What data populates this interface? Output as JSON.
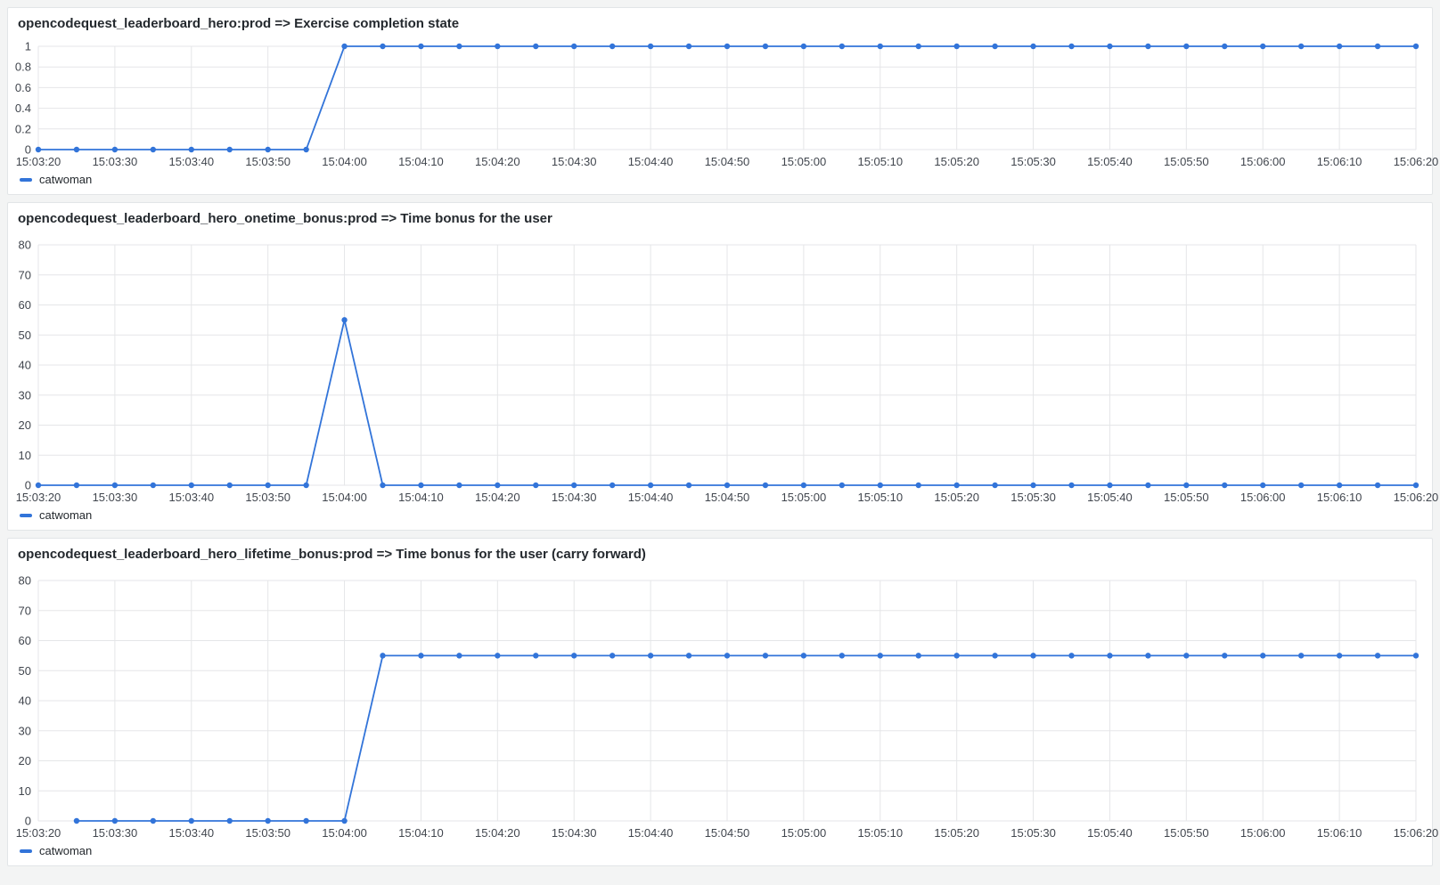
{
  "accent_color": "#3274d9",
  "panels": [
    {
      "title": "opencodequest_leaderboard_hero:prod => Exercise completion state",
      "legend_label": "catwoman",
      "chart_data": {
        "type": "line",
        "title": "opencodequest_leaderboard_hero:prod => Exercise completion state",
        "xlabel": "",
        "ylabel": "",
        "grid": true,
        "legend_position": "bottom",
        "ylim": [
          0,
          1
        ],
        "y_ticks": [
          "0",
          "0.2",
          "0.4",
          "0.6",
          "0.8",
          "1"
        ],
        "x_tick_labels": [
          "15:03:20",
          "15:03:30",
          "15:03:40",
          "15:03:50",
          "15:04:00",
          "15:04:10",
          "15:04:20",
          "15:04:30",
          "15:04:40",
          "15:04:50",
          "15:05:00",
          "15:05:10",
          "15:05:20",
          "15:05:30",
          "15:05:40",
          "15:05:50",
          "15:06:00",
          "15:06:10",
          "15:06:20"
        ],
        "x": [
          "15:03:20",
          "15:03:25",
          "15:03:30",
          "15:03:35",
          "15:03:40",
          "15:03:45",
          "15:03:50",
          "15:03:55",
          "15:04:00",
          "15:04:05",
          "15:04:10",
          "15:04:15",
          "15:04:20",
          "15:04:25",
          "15:04:30",
          "15:04:35",
          "15:04:40",
          "15:04:45",
          "15:04:50",
          "15:04:55",
          "15:05:00",
          "15:05:05",
          "15:05:10",
          "15:05:15",
          "15:05:20",
          "15:05:25",
          "15:05:30",
          "15:05:35",
          "15:05:40",
          "15:05:45",
          "15:05:50",
          "15:05:55",
          "15:06:00",
          "15:06:05",
          "15:06:10",
          "15:06:15",
          "15:06:20"
        ],
        "series": [
          {
            "name": "catwoman",
            "color": "#3274d9",
            "values": [
              0,
              0,
              0,
              0,
              0,
              0,
              0,
              0,
              1,
              1,
              1,
              1,
              1,
              1,
              1,
              1,
              1,
              1,
              1,
              1,
              1,
              1,
              1,
              1,
              1,
              1,
              1,
              1,
              1,
              1,
              1,
              1,
              1,
              1,
              1,
              1,
              1
            ]
          }
        ]
      }
    },
    {
      "title": "opencodequest_leaderboard_hero_onetime_bonus:prod => Time bonus for the user",
      "legend_label": "catwoman",
      "chart_data": {
        "type": "line",
        "title": "opencodequest_leaderboard_hero_onetime_bonus:prod => Time bonus for the user",
        "xlabel": "",
        "ylabel": "",
        "grid": true,
        "legend_position": "bottom",
        "ylim": [
          0,
          80
        ],
        "y_ticks": [
          "0",
          "10",
          "20",
          "30",
          "40",
          "50",
          "60",
          "70",
          "80"
        ],
        "x_tick_labels": [
          "15:03:20",
          "15:03:30",
          "15:03:40",
          "15:03:50",
          "15:04:00",
          "15:04:10",
          "15:04:20",
          "15:04:30",
          "15:04:40",
          "15:04:50",
          "15:05:00",
          "15:05:10",
          "15:05:20",
          "15:05:30",
          "15:05:40",
          "15:05:50",
          "15:06:00",
          "15:06:10",
          "15:06:20"
        ],
        "x": [
          "15:03:20",
          "15:03:25",
          "15:03:30",
          "15:03:35",
          "15:03:40",
          "15:03:45",
          "15:03:50",
          "15:03:55",
          "15:04:00",
          "15:04:05",
          "15:04:10",
          "15:04:15",
          "15:04:20",
          "15:04:25",
          "15:04:30",
          "15:04:35",
          "15:04:40",
          "15:04:45",
          "15:04:50",
          "15:04:55",
          "15:05:00",
          "15:05:05",
          "15:05:10",
          "15:05:15",
          "15:05:20",
          "15:05:25",
          "15:05:30",
          "15:05:35",
          "15:05:40",
          "15:05:45",
          "15:05:50",
          "15:05:55",
          "15:06:00",
          "15:06:05",
          "15:06:10",
          "15:06:15",
          "15:06:20"
        ],
        "series": [
          {
            "name": "catwoman",
            "color": "#3274d9",
            "values": [
              0,
              0,
              0,
              0,
              0,
              0,
              0,
              0,
              55,
              0,
              0,
              0,
              0,
              0,
              0,
              0,
              0,
              0,
              0,
              0,
              0,
              0,
              0,
              0,
              0,
              0,
              0,
              0,
              0,
              0,
              0,
              0,
              0,
              0,
              0,
              0,
              0
            ]
          }
        ]
      }
    },
    {
      "title": "opencodequest_leaderboard_hero_lifetime_bonus:prod => Time bonus for the user (carry forward)",
      "legend_label": "catwoman",
      "chart_data": {
        "type": "line",
        "title": "opencodequest_leaderboard_hero_lifetime_bonus:prod => Time bonus for the user (carry forward)",
        "xlabel": "",
        "ylabel": "",
        "grid": true,
        "legend_position": "bottom",
        "ylim": [
          0,
          80
        ],
        "y_ticks": [
          "0",
          "10",
          "20",
          "30",
          "40",
          "50",
          "60",
          "70",
          "80"
        ],
        "x_tick_labels": [
          "15:03:20",
          "15:03:30",
          "15:03:40",
          "15:03:50",
          "15:04:00",
          "15:04:10",
          "15:04:20",
          "15:04:30",
          "15:04:40",
          "15:04:50",
          "15:05:00",
          "15:05:10",
          "15:05:20",
          "15:05:30",
          "15:05:40",
          "15:05:50",
          "15:06:00",
          "15:06:10",
          "15:06:20"
        ],
        "x": [
          "15:03:20",
          "15:03:25",
          "15:03:30",
          "15:03:35",
          "15:03:40",
          "15:03:45",
          "15:03:50",
          "15:03:55",
          "15:04:00",
          "15:04:05",
          "15:04:10",
          "15:04:15",
          "15:04:20",
          "15:04:25",
          "15:04:30",
          "15:04:35",
          "15:04:40",
          "15:04:45",
          "15:04:50",
          "15:04:55",
          "15:05:00",
          "15:05:05",
          "15:05:10",
          "15:05:15",
          "15:05:20",
          "15:05:25",
          "15:05:30",
          "15:05:35",
          "15:05:40",
          "15:05:45",
          "15:05:50",
          "15:05:55",
          "15:06:00",
          "15:06:05",
          "15:06:10",
          "15:06:15",
          "15:06:20"
        ],
        "series": [
          {
            "name": "catwoman",
            "color": "#3274d9",
            "values": [
              null,
              0,
              0,
              0,
              0,
              0,
              0,
              0,
              0,
              55,
              55,
              55,
              55,
              55,
              55,
              55,
              55,
              55,
              55,
              55,
              55,
              55,
              55,
              55,
              55,
              55,
              55,
              55,
              55,
              55,
              55,
              55,
              55,
              55,
              55,
              55,
              55
            ]
          }
        ]
      }
    }
  ]
}
